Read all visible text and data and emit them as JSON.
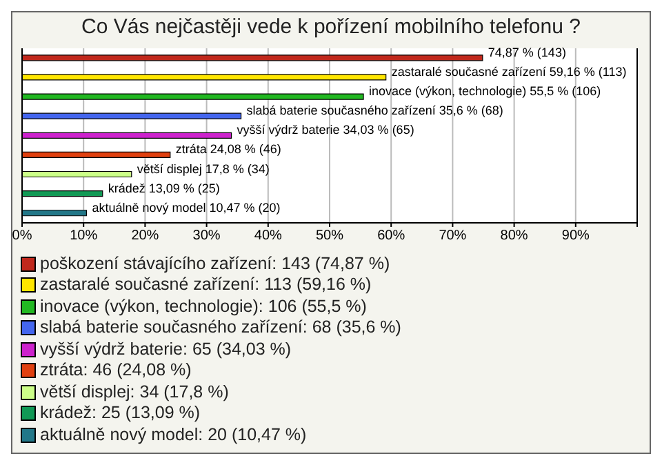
{
  "chart_data": {
    "type": "bar",
    "orientation": "horizontal",
    "stacked": true,
    "title": "Co Vás nejčastěji vede k pořízení mobilního telefonu ?",
    "categories": [
      null,
      null,
      null,
      null,
      null,
      null,
      null,
      null,
      null
    ],
    "series": [
      {
        "name": "poškození stávajícího zařízení: 143 (74,87 %)",
        "color": "#c0281c",
        "values": [
          74.87,
          null,
          null,
          null,
          null,
          null,
          null,
          null,
          null
        ],
        "value_labels": [
          "74,87 % (143)",
          null,
          null,
          null,
          null,
          null,
          null,
          null,
          null
        ]
      },
      {
        "name": "zastaralé současné zařízení: 113 (59,16 %)",
        "color": "#ffe600",
        "values": [
          null,
          59.16,
          null,
          null,
          null,
          null,
          null,
          null,
          null
        ],
        "value_labels": [
          null,
          "zastaralé současné zařízení 59,16 % (113)",
          null,
          null,
          null,
          null,
          null,
          null,
          null
        ]
      },
      {
        "name": "inovace (výkon, technologie): 106 (55,5 %)",
        "color": "#22b822",
        "values": [
          null,
          null,
          55.5,
          null,
          null,
          null,
          null,
          null,
          null
        ],
        "value_labels": [
          null,
          null,
          "inovace (výkon, technologie) 55,5 % (106)",
          null,
          null,
          null,
          null,
          null,
          null
        ]
      },
      {
        "name": "slabá baterie současného zařízení: 68 (35,6 %)",
        "color": "#4466ee",
        "values": [
          null,
          null,
          null,
          35.6,
          null,
          null,
          null,
          null,
          null
        ],
        "value_labels": [
          null,
          null,
          null,
          "slabá baterie současného zařízení 35,6 % (68)",
          null,
          null,
          null,
          null,
          null
        ]
      },
      {
        "name": "vyšší výdrž baterie: 65 (34,03 %)",
        "color": "#cc22cc",
        "values": [
          null,
          null,
          null,
          null,
          34.03,
          null,
          null,
          null,
          null
        ],
        "value_labels": [
          null,
          null,
          null,
          null,
          "vyšší výdrž baterie 34,03 % (65)",
          null,
          null,
          null,
          null
        ]
      },
      {
        "name": "ztráta: 46 (24,08 %)",
        "color": "#e04010",
        "values": [
          null,
          null,
          null,
          null,
          null,
          24.08,
          null,
          null,
          null
        ],
        "value_labels": [
          null,
          null,
          null,
          null,
          null,
          "ztráta 24,08 % (46)",
          null,
          null,
          null
        ]
      },
      {
        "name": "větší displej: 34 (17,8 %)",
        "color": "#ccff88",
        "values": [
          null,
          null,
          null,
          null,
          null,
          null,
          17.8,
          null,
          null
        ],
        "value_labels": [
          null,
          null,
          null,
          null,
          null,
          null,
          "větší displej 17,8 % (34)",
          null,
          null
        ]
      },
      {
        "name": "krádež: 25 (13,09 %)",
        "color": "#119955",
        "values": [
          null,
          null,
          null,
          null,
          null,
          null,
          null,
          13.09,
          null
        ],
        "value_labels": [
          null,
          null,
          null,
          null,
          null,
          null,
          null,
          "krádež 13,09 % (25)",
          null
        ]
      },
      {
        "name": "aktuálně nový model: 20 (10,47 %)",
        "color": "#227788",
        "values": [
          null,
          null,
          null,
          null,
          null,
          null,
          null,
          null,
          10.47
        ],
        "value_labels": [
          null,
          null,
          null,
          null,
          null,
          null,
          null,
          null,
          "aktuálně nový model 10,47 % (20)"
        ]
      }
    ],
    "xlim": [
      0,
      100
    ],
    "xticks": [
      {
        "value": 0,
        "label": "0%"
      },
      {
        "value": 10,
        "label": "10%"
      },
      {
        "value": 20,
        "label": "20%"
      },
      {
        "value": 30,
        "label": "30%"
      },
      {
        "value": 40,
        "label": "40%"
      },
      {
        "value": 50,
        "label": "50%"
      },
      {
        "value": 60,
        "label": "60%"
      },
      {
        "value": 70,
        "label": "70%"
      },
      {
        "value": 80,
        "label": "80%"
      },
      {
        "value": 90,
        "label": "90%"
      },
      {
        "value": 100,
        "label": null
      }
    ],
    "grid": "x",
    "legend": "bottom",
    "tick_labels": "x"
  }
}
